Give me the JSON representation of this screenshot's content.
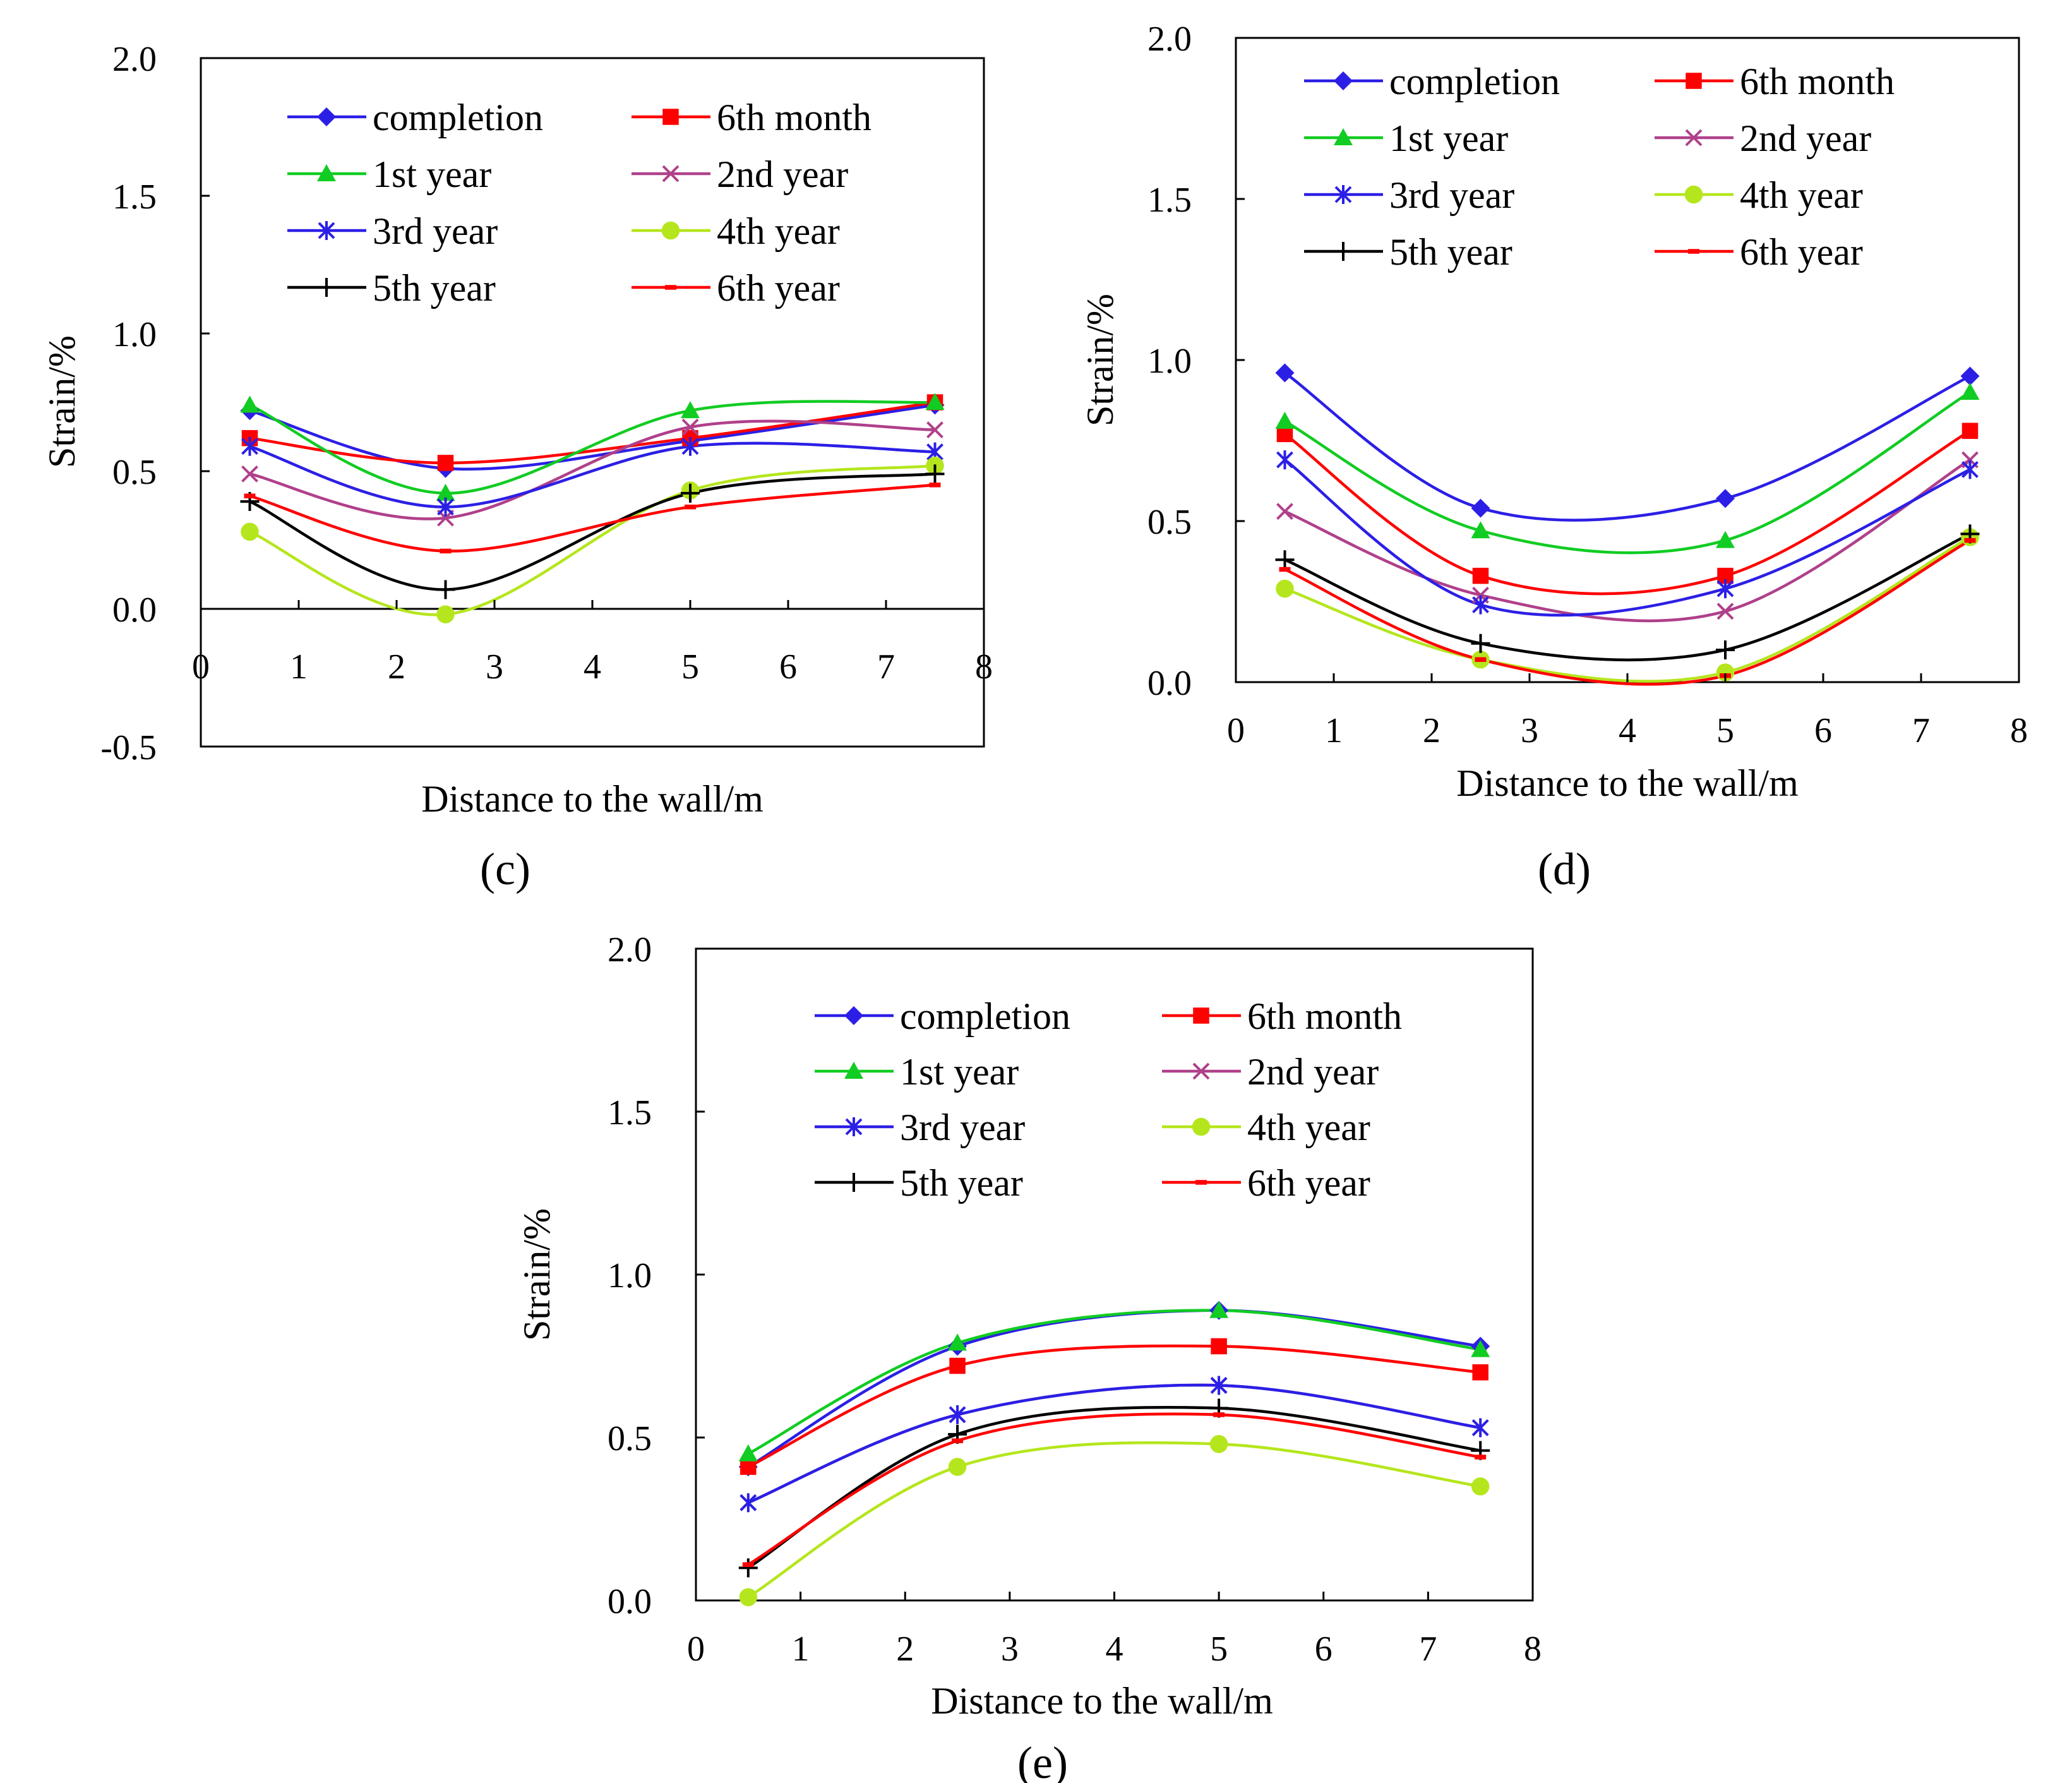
{
  "series_styles": [
    {
      "name": "completion",
      "color": "#2B1FE6",
      "marker": "diamond"
    },
    {
      "name": "6th month",
      "color": "#FF0000",
      "marker": "square"
    },
    {
      "name": "1st year",
      "color": "#11CC22",
      "marker": "triangle"
    },
    {
      "name": "2nd year",
      "color": "#B0408A",
      "marker": "x"
    },
    {
      "name": "3rd year",
      "color": "#2B1FE6",
      "marker": "star"
    },
    {
      "name": "4th year",
      "color": "#B5E61D",
      "marker": "circle"
    },
    {
      "name": "5th year",
      "color": "#000000",
      "marker": "plus"
    },
    {
      "name": "6th year",
      "color": "#FF0000",
      "marker": "dash"
    }
  ],
  "chart_data": [
    {
      "type": "line",
      "panel": "c",
      "caption": "(c)",
      "xlabel": "Distance to the wall/m",
      "ylabel": "Strain/%",
      "xlim": [
        0,
        8
      ],
      "ylim": [
        -0.5,
        2.0
      ],
      "x_ticks": [
        "0",
        "1",
        "2",
        "3",
        "4",
        "5",
        "6",
        "7",
        "8"
      ],
      "y_ticks": [
        "-0.5",
        "0.0",
        "0.5",
        "1.0",
        "1.5",
        "2.0"
      ],
      "zero_line": true,
      "legend_position": "top",
      "series": [
        {
          "name": "completion",
          "x": [
            0.5,
            2.5,
            5,
            7.5
          ],
          "values": [
            0.72,
            0.51,
            0.61,
            0.74
          ]
        },
        {
          "name": "6th month",
          "x": [
            0.5,
            2.5,
            5,
            7.5
          ],
          "values": [
            0.62,
            0.53,
            0.62,
            0.75
          ]
        },
        {
          "name": "1st year",
          "x": [
            0.5,
            2.5,
            5,
            7.5
          ],
          "values": [
            0.74,
            0.42,
            0.72,
            0.75
          ]
        },
        {
          "name": "2nd year",
          "x": [
            0.5,
            2.5,
            5,
            7.5
          ],
          "values": [
            0.49,
            0.33,
            0.66,
            0.65
          ]
        },
        {
          "name": "3rd year",
          "x": [
            0.5,
            2.5,
            5,
            7.5
          ],
          "values": [
            0.59,
            0.37,
            0.59,
            0.57
          ]
        },
        {
          "name": "4th year",
          "x": [
            0.5,
            2.5,
            5,
            7.5
          ],
          "values": [
            0.28,
            -0.02,
            0.43,
            0.52
          ]
        },
        {
          "name": "5th year",
          "x": [
            0.5,
            2.5,
            5,
            7.5
          ],
          "values": [
            0.39,
            0.07,
            0.42,
            0.49
          ]
        },
        {
          "name": "6th year",
          "x": [
            0.5,
            2.5,
            5,
            7.5
          ],
          "values": [
            0.41,
            0.21,
            0.37,
            0.45
          ]
        }
      ]
    },
    {
      "type": "line",
      "panel": "d",
      "caption": "(d)",
      "xlabel": "Distance to the wall/m",
      "ylabel": "Strain/%",
      "xlim": [
        0,
        8
      ],
      "ylim": [
        0.0,
        2.0
      ],
      "x_ticks": [
        "0",
        "1",
        "2",
        "3",
        "4",
        "5",
        "6",
        "7",
        "8"
      ],
      "y_ticks": [
        "0.0",
        "0.5",
        "1.0",
        "1.5",
        "2.0"
      ],
      "zero_line": false,
      "legend_position": "top",
      "series": [
        {
          "name": "completion",
          "x": [
            0.5,
            2.5,
            5,
            7.5
          ],
          "values": [
            0.96,
            0.54,
            0.57,
            0.95
          ]
        },
        {
          "name": "6th month",
          "x": [
            0.5,
            2.5,
            5,
            7.5
          ],
          "values": [
            0.77,
            0.33,
            0.33,
            0.78
          ]
        },
        {
          "name": "1st year",
          "x": [
            0.5,
            2.5,
            5,
            7.5
          ],
          "values": [
            0.81,
            0.47,
            0.44,
            0.9
          ]
        },
        {
          "name": "2nd year",
          "x": [
            0.5,
            2.5,
            5,
            7.5
          ],
          "values": [
            0.53,
            0.27,
            0.22,
            0.69
          ]
        },
        {
          "name": "3rd year",
          "x": [
            0.5,
            2.5,
            5,
            7.5
          ],
          "values": [
            0.69,
            0.24,
            0.29,
            0.66
          ]
        },
        {
          "name": "4th year",
          "x": [
            0.5,
            2.5,
            5,
            7.5
          ],
          "values": [
            0.29,
            0.07,
            0.03,
            0.45
          ]
        },
        {
          "name": "5th year",
          "x": [
            0.5,
            2.5,
            5,
            7.5
          ],
          "values": [
            0.38,
            0.12,
            0.1,
            0.46
          ]
        },
        {
          "name": "6th year",
          "x": [
            0.5,
            2.5,
            5,
            7.5
          ],
          "values": [
            0.35,
            0.07,
            0.02,
            0.44
          ]
        }
      ]
    },
    {
      "type": "line",
      "panel": "e",
      "caption": "(e)",
      "xlabel": "Distance to the wall/m",
      "ylabel": "Strain/%",
      "xlim": [
        0,
        8
      ],
      "ylim": [
        0.0,
        2.0
      ],
      "x_ticks": [
        "0",
        "1",
        "2",
        "3",
        "4",
        "5",
        "6",
        "7",
        "8"
      ],
      "y_ticks": [
        "0.0",
        "0.5",
        "1.0",
        "1.5",
        "2.0"
      ],
      "zero_line": false,
      "legend_position": "top",
      "series": [
        {
          "name": "completion",
          "x": [
            0.5,
            2.5,
            5,
            7.5
          ],
          "values": [
            0.41,
            0.78,
            0.89,
            0.78
          ]
        },
        {
          "name": "6th month",
          "x": [
            0.5,
            2.5,
            5,
            7.5
          ],
          "values": [
            0.41,
            0.72,
            0.78,
            0.7
          ]
        },
        {
          "name": "1st year",
          "x": [
            0.5,
            2.5,
            5,
            7.5
          ],
          "values": [
            0.45,
            0.79,
            0.89,
            0.77
          ]
        },
        {
          "name": "2nd year",
          "x": [
            0.5,
            2.5,
            5,
            7.5
          ],
          "values": [
            0.3,
            0.57,
            0.66,
            0.53
          ]
        },
        {
          "name": "3rd year",
          "x": [
            0.5,
            2.5,
            5,
            7.5
          ],
          "values": [
            0.3,
            0.57,
            0.66,
            0.53
          ]
        },
        {
          "name": "4th year",
          "x": [
            0.5,
            2.5,
            5,
            7.5
          ],
          "values": [
            0.01,
            0.41,
            0.48,
            0.35
          ]
        },
        {
          "name": "5th year",
          "x": [
            0.5,
            2.5,
            5,
            7.5
          ],
          "values": [
            0.1,
            0.51,
            0.59,
            0.46
          ]
        },
        {
          "name": "6th year",
          "x": [
            0.5,
            2.5,
            5,
            7.5
          ],
          "values": [
            0.11,
            0.49,
            0.57,
            0.44
          ]
        }
      ]
    }
  ]
}
